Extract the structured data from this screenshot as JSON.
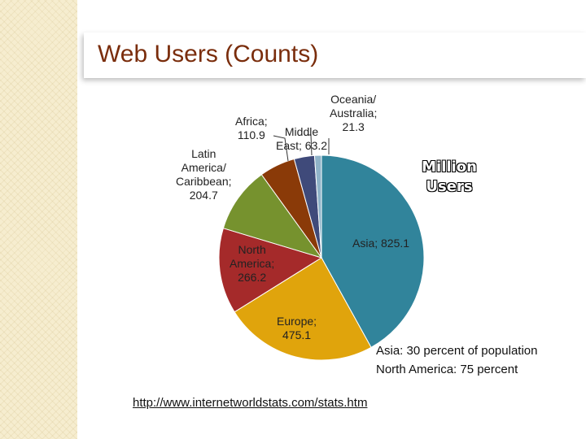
{
  "slide": {
    "title": "Web Users (Counts)",
    "link": "http://www.internetworldstats.com/stats.htm",
    "notes": [
      "Asia: 30 percent of population",
      "North America: 75 percent"
    ],
    "unit_label_lines": [
      "Million",
      "Users"
    ]
  },
  "chart_data": {
    "type": "pie",
    "title": "",
    "unit": "Million Users",
    "slices": [
      {
        "label": "Asia",
        "value": 825.1,
        "color": "#31849b",
        "label_lines": [
          "Asia; 825.1"
        ]
      },
      {
        "label": "Europe",
        "value": 475.1,
        "color": "#e0a40c",
        "label_lines": [
          "Europe;",
          "475.1"
        ]
      },
      {
        "label": "North America",
        "value": 266.2,
        "color": "#a52a2a",
        "label_lines": [
          "North",
          "America;",
          "266.2"
        ]
      },
      {
        "label": "Latin America/ Caribbean",
        "value": 204.7,
        "color": "#76922e",
        "label_lines": [
          "Latin",
          "America/",
          "Caribbean;",
          "204.7"
        ]
      },
      {
        "label": "Africa",
        "value": 110.9,
        "color": "#8a3a08",
        "label_lines": [
          "Africa;",
          "110.9"
        ]
      },
      {
        "label": "Middle East",
        "value": 63.2,
        "color": "#3f4a7a",
        "label_lines": [
          "Middle",
          "East; 63.2"
        ]
      },
      {
        "label": "Oceania/ Australia",
        "value": 21.3,
        "color": "#8fb3c8",
        "label_lines": [
          "Oceania/",
          "Australia;",
          "21.3"
        ]
      }
    ],
    "start_angle_deg": 0,
    "direction": "clockwise"
  }
}
